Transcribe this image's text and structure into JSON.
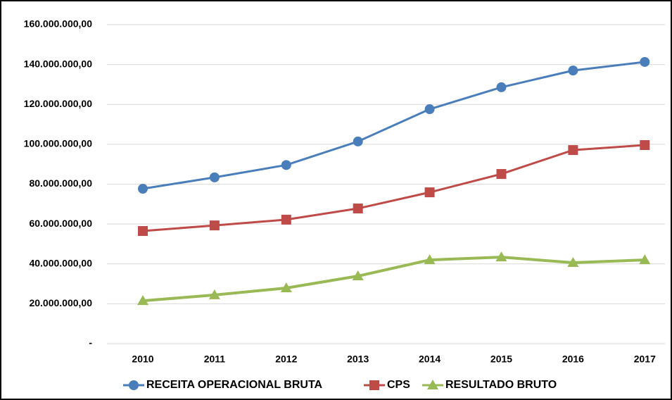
{
  "chart_data": {
    "type": "line",
    "categories": [
      "2010",
      "2011",
      "2012",
      "2013",
      "2014",
      "2015",
      "2016",
      "2017"
    ],
    "series": [
      {
        "name": "RECEITA OPERACIONAL BRUTA",
        "color": "#4a7ebb",
        "marker": "circle",
        "values": [
          77700000,
          83400000,
          89600000,
          101400000,
          117600000,
          128600000,
          137000000,
          141300000
        ]
      },
      {
        "name": "CPS",
        "color": "#be4b48",
        "marker": "square",
        "values": [
          56500000,
          59300000,
          62200000,
          67800000,
          75900000,
          85100000,
          97100000,
          99600000
        ]
      },
      {
        "name": "RESULTADO BRUTO",
        "color": "#98b954",
        "marker": "triangle",
        "values": [
          21500000,
          24400000,
          27900000,
          33900000,
          42000000,
          43400000,
          40600000,
          42000000
        ]
      }
    ],
    "ylim": [
      0,
      160000000
    ],
    "yticks": [
      {
        "value": 0,
        "label": "-"
      },
      {
        "value": 20000000,
        "label": "20.000.000,00"
      },
      {
        "value": 40000000,
        "label": "40.000.000,00"
      },
      {
        "value": 60000000,
        "label": "60.000.000,00"
      },
      {
        "value": 80000000,
        "label": "80.000.000,00"
      },
      {
        "value": 100000000,
        "label": "100.000.000,00"
      },
      {
        "value": 120000000,
        "label": "120.000.000,00"
      },
      {
        "value": 140000000,
        "label": "140.000.000,00"
      },
      {
        "value": 160000000,
        "label": "160.000.000,00"
      }
    ],
    "grid": true,
    "legend": "bottom"
  }
}
